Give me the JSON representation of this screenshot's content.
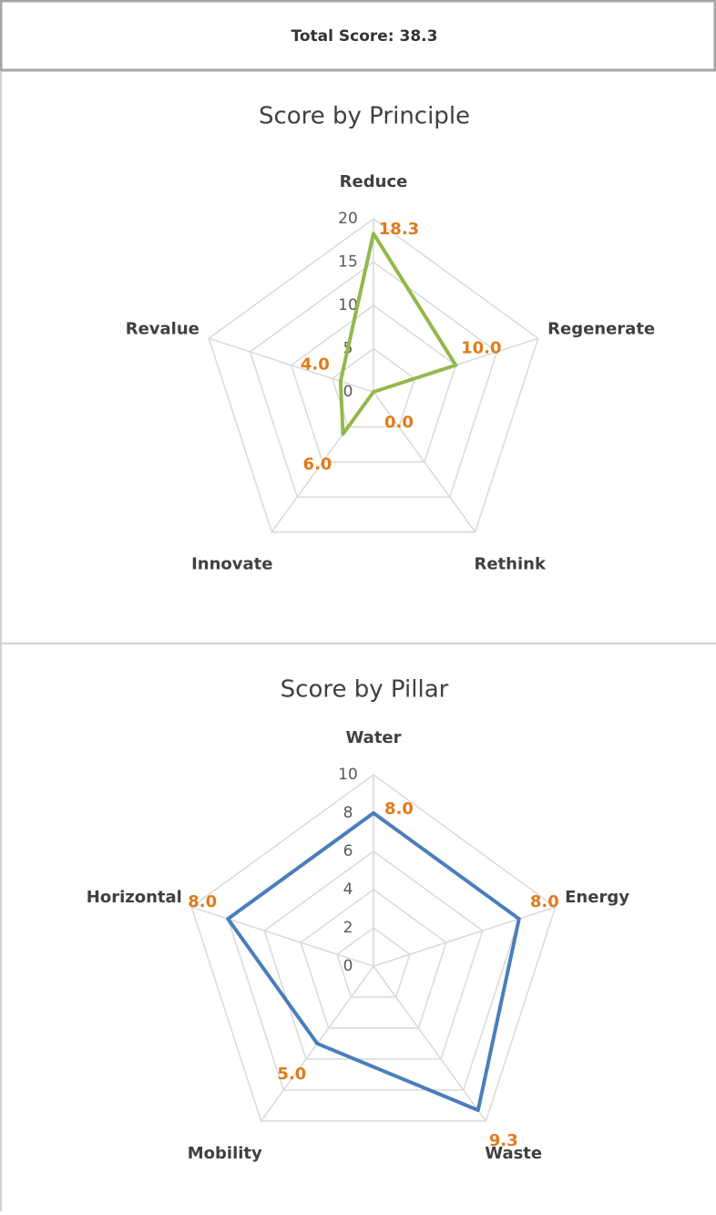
{
  "header": {
    "title": "Total Score: 38.3"
  },
  "chart_data": [
    {
      "type": "radar",
      "title": "Score by Principle",
      "categories": [
        "Reduce",
        "Regenerate",
        "Rethink",
        "Innovate",
        "Revalue"
      ],
      "values": [
        18.3,
        10.0,
        0.0,
        6.0,
        4.0
      ],
      "value_labels": [
        "18.3",
        "10.0",
        "0.0",
        "6.0",
        "4.0"
      ],
      "color": "#92b84c",
      "ylim": [
        0,
        20
      ],
      "yticks": [
        0,
        5,
        10,
        15,
        20
      ],
      "grid": true
    },
    {
      "type": "radar",
      "title": "Score by Pillar",
      "categories": [
        "Water",
        "Energy",
        "Waste",
        "Mobility",
        "Horizontal"
      ],
      "values": [
        8.0,
        8.0,
        9.3,
        5.0,
        8.0
      ],
      "value_labels": [
        "8.0",
        "8.0",
        "9.3",
        "5.0",
        "8.0"
      ],
      "color": "#4a7ebb",
      "ylim": [
        0,
        10
      ],
      "yticks": [
        0,
        2,
        4,
        6,
        8,
        10
      ],
      "grid": true
    }
  ]
}
